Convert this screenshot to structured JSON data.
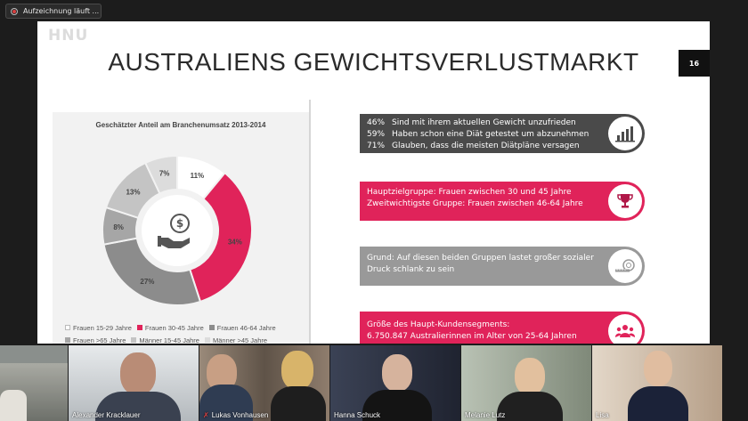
{
  "recording": {
    "label": "Aufzeichnung läuft ..."
  },
  "slide": {
    "logo": "HNU",
    "title": "AUSTRALIENS GEWICHTSVERLUSTMARKT",
    "page_number": "16"
  },
  "chart_data": {
    "type": "pie",
    "title": "Geschätzter Anteil am Branchenumsatz 2013-2014",
    "categories": [
      "Frauen 15-29 Jahre",
      "Frauen 30-45 Jahre",
      "Frauen 46-64 Jahre",
      "Frauen >65 Jahre",
      "Männer 15-45 Jahre",
      "Männer >45 Jahre"
    ],
    "values": [
      11,
      34,
      27,
      8,
      13,
      7
    ],
    "labels": [
      "11%",
      "34%",
      "27%",
      "8%",
      "13%",
      "7%"
    ],
    "colors": [
      "#ffffff",
      "#e0235a",
      "#8c8c8c",
      "#a6a6a6",
      "#c4c4c4",
      "#dcdcdc"
    ],
    "legend_position": "bottom"
  },
  "info": {
    "stats": [
      {
        "pct": "46%",
        "text": "Sind mit ihrem aktuellen Gewicht unzufrieden"
      },
      {
        "pct": "59%",
        "text": "Haben schon eine Diät getestet um abzunehmen"
      },
      {
        "pct": "71%",
        "text": "Glauben, dass die meisten Diätpläne versagen"
      }
    ],
    "target_1": "Hauptzielgruppe: Frauen zwischen 30 und 45 Jahre",
    "target_2": "Zweitwichtigste Gruppe: Frauen zwischen 46-64 Jahre",
    "reason_1": "Grund: Auf diesen beiden Gruppen lastet großer sozialer",
    "reason_2": "Druck schlank zu sein",
    "segment_1": "Größe des Haupt-Kundensegments:",
    "segment_2": "6.750.847 Australierinnen im Alter von 25-64 Jahren",
    "icons": [
      "bar-chart-icon",
      "trophy-icon",
      "measuring-tape-icon",
      "group-icon"
    ]
  },
  "participants": [
    {
      "name": "",
      "muted": false
    },
    {
      "name": "Alexander Kracklauer",
      "muted": false
    },
    {
      "name": "Lukas Vonhausen",
      "muted": true
    },
    {
      "name": "Hanna Schuck",
      "muted": false
    },
    {
      "name": "Melanie Lutz",
      "muted": false
    },
    {
      "name": "Lisa",
      "muted": false
    }
  ]
}
